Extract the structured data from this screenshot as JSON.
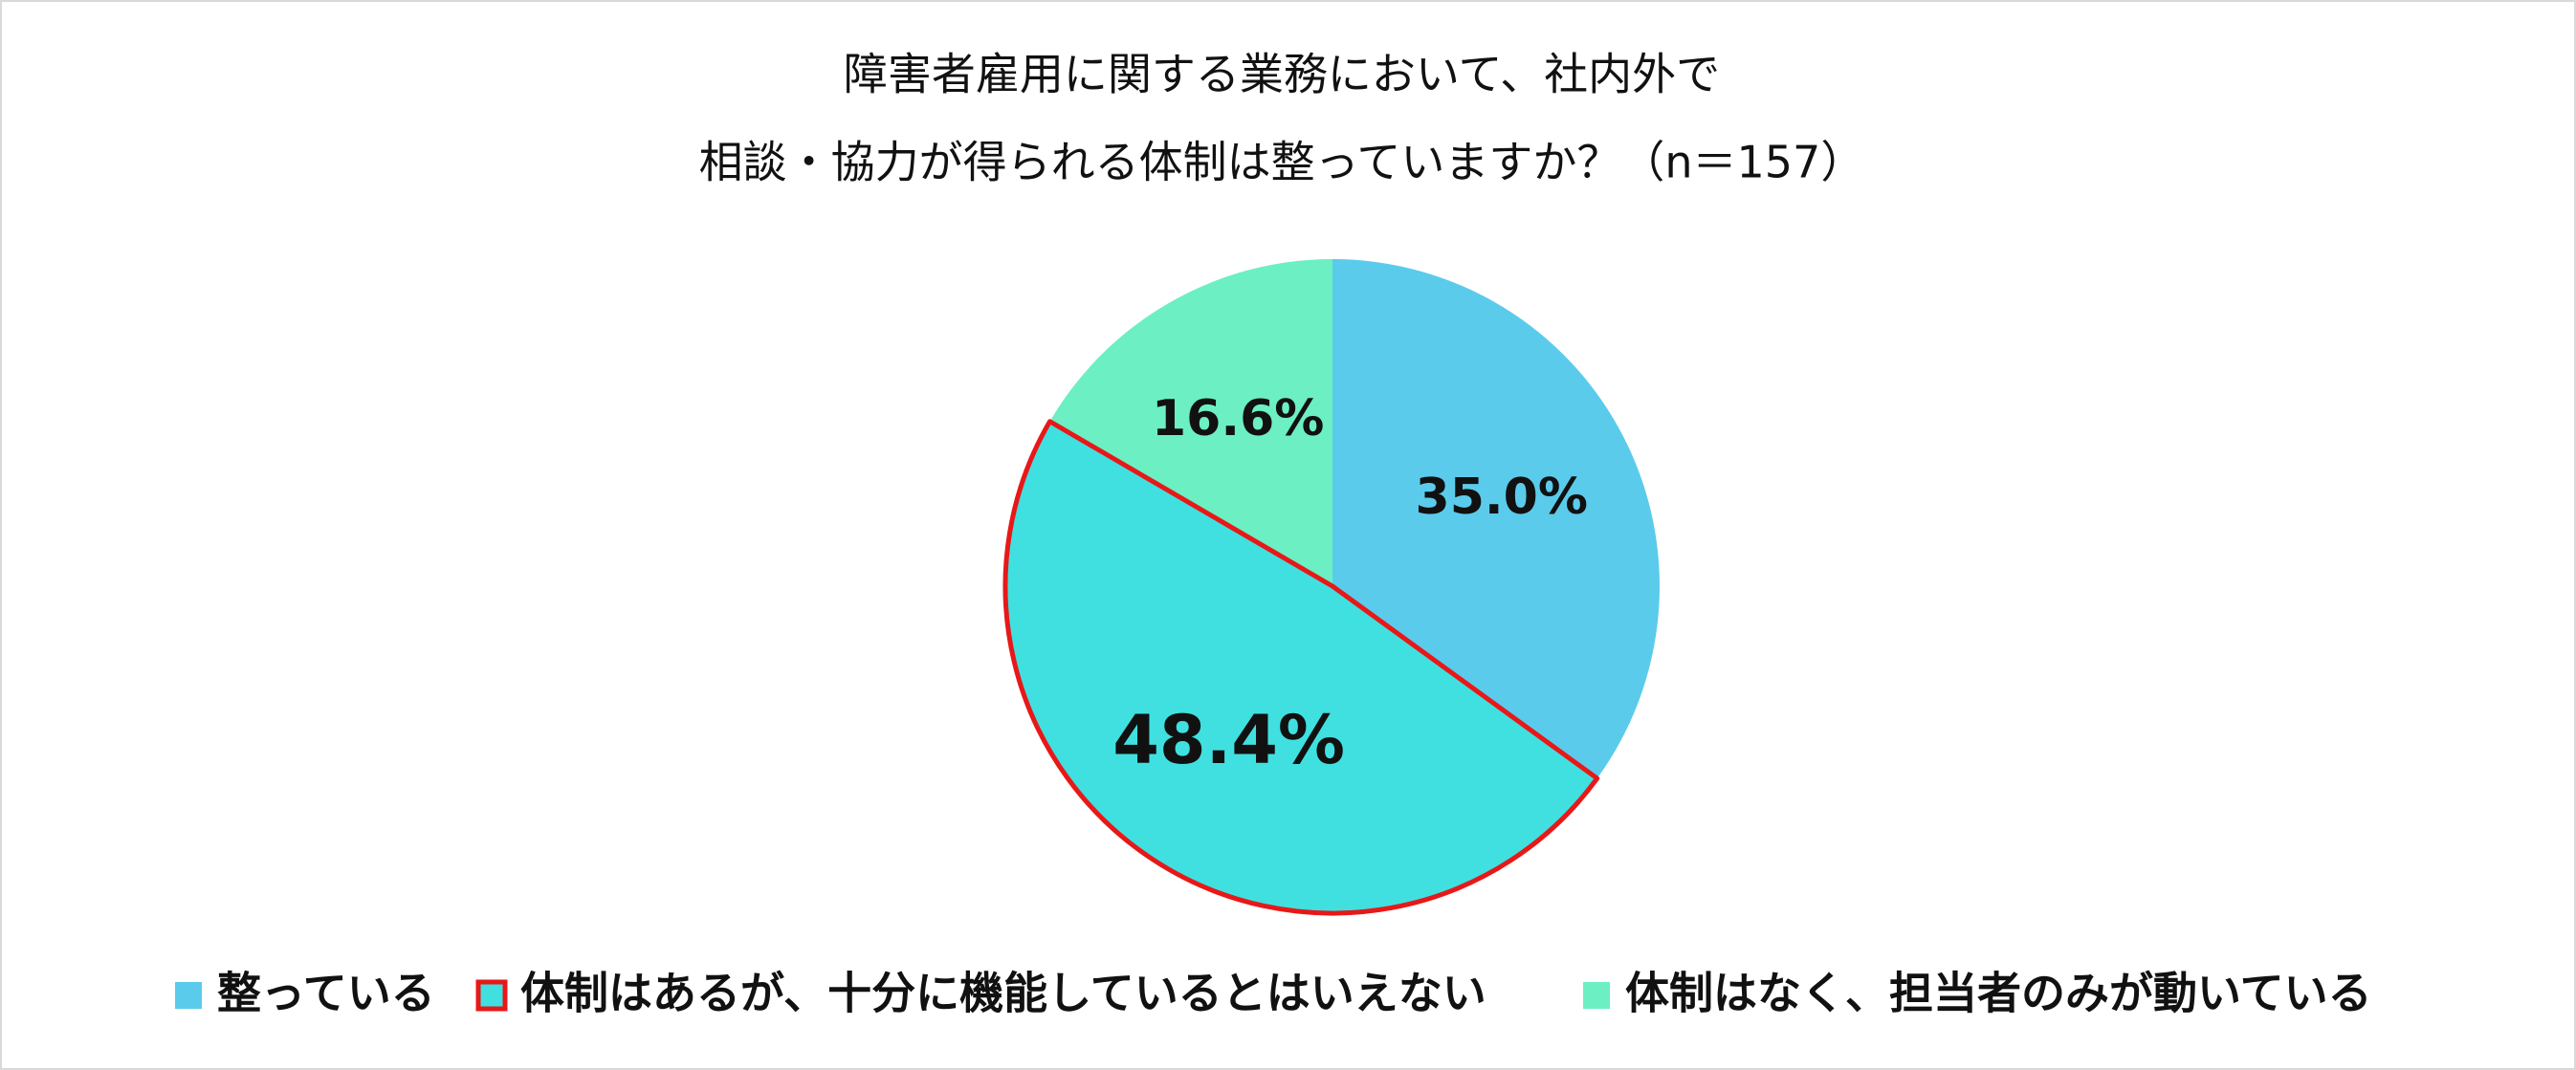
{
  "chart_data": {
    "type": "pie",
    "title": [
      "障害者雇用に関する業務において、社内外で",
      "相談・協力が得られる体制は整っていますか？（n＝157）"
    ],
    "categories": [
      "整っている",
      "体制はあるが、十分に機能しているとはいえない",
      "体制はなく、担当者のみが動いている"
    ],
    "values": [
      35.0,
      48.4,
      16.6
    ],
    "value_labels": [
      "35.0%",
      "48.4%",
      "16.6%"
    ],
    "colors": [
      "#5BCBEC",
      "#40E0E0",
      "#6BEFC3"
    ],
    "highlight_index": 1,
    "highlight_color": "#E81818",
    "legend": "bottom"
  }
}
